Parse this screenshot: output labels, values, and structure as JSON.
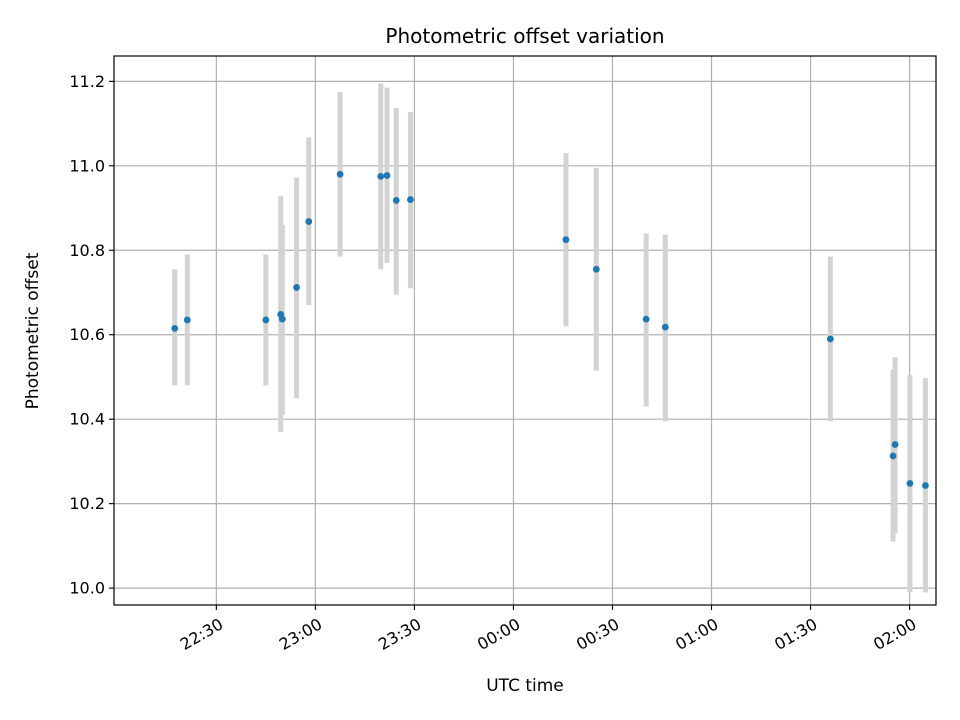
{
  "chart_data": {
    "type": "scatter",
    "title": "Photometric offset variation",
    "xlabel": "UTC time",
    "ylabel": "Photometric offset",
    "x_unit": "minutes",
    "xlim": [
      -121,
      128
    ],
    "ylim": [
      9.96,
      11.26
    ],
    "grid": true,
    "x_ticks": [
      {
        "value": -90,
        "label": "22:30"
      },
      {
        "value": -60,
        "label": "23:00"
      },
      {
        "value": -30,
        "label": "23:30"
      },
      {
        "value": 0,
        "label": "00:00"
      },
      {
        "value": 30,
        "label": "00:30"
      },
      {
        "value": 60,
        "label": "01:00"
      },
      {
        "value": 90,
        "label": "01:30"
      },
      {
        "value": 120,
        "label": "02:00"
      }
    ],
    "y_ticks": [
      {
        "value": 10.0,
        "label": "10.0"
      },
      {
        "value": 10.2,
        "label": "10.2"
      },
      {
        "value": 10.4,
        "label": "10.4"
      },
      {
        "value": 10.6,
        "label": "10.6"
      },
      {
        "value": 10.8,
        "label": "10.8"
      },
      {
        "value": 11.0,
        "label": "11.0"
      },
      {
        "value": 11.2,
        "label": "11.2"
      }
    ],
    "point_color": "#1f77b4",
    "errorbar_color": "#d3d3d3",
    "points": [
      {
        "x": -102.6,
        "y": 10.615,
        "lo": 10.48,
        "hi": 10.755
      },
      {
        "x": -98.8,
        "y": 10.635,
        "lo": 10.48,
        "hi": 10.79
      },
      {
        "x": -75.0,
        "y": 10.635,
        "lo": 10.48,
        "hi": 10.79
      },
      {
        "x": -70.5,
        "y": 10.648,
        "lo": 10.37,
        "hi": 10.928
      },
      {
        "x": -70.0,
        "y": 10.637,
        "lo": 10.41,
        "hi": 10.86
      },
      {
        "x": -65.7,
        "y": 10.712,
        "lo": 10.45,
        "hi": 10.972
      },
      {
        "x": -62.0,
        "y": 10.868,
        "lo": 10.67,
        "hi": 11.067
      },
      {
        "x": -52.5,
        "y": 10.98,
        "lo": 10.785,
        "hi": 11.175
      },
      {
        "x": -40.2,
        "y": 10.975,
        "lo": 10.755,
        "hi": 11.195
      },
      {
        "x": -38.3,
        "y": 10.977,
        "lo": 10.77,
        "hi": 11.185
      },
      {
        "x": -35.5,
        "y": 10.918,
        "lo": 10.695,
        "hi": 11.137
      },
      {
        "x": -31.2,
        "y": 10.92,
        "lo": 10.71,
        "hi": 11.127
      },
      {
        "x": 15.9,
        "y": 10.825,
        "lo": 10.62,
        "hi": 11.03
      },
      {
        "x": 25.1,
        "y": 10.755,
        "lo": 10.515,
        "hi": 10.995
      },
      {
        "x": 40.2,
        "y": 10.637,
        "lo": 10.43,
        "hi": 10.84
      },
      {
        "x": 46.0,
        "y": 10.618,
        "lo": 10.395,
        "hi": 10.837
      },
      {
        "x": 96.0,
        "y": 10.59,
        "lo": 10.395,
        "hi": 10.785
      },
      {
        "x": 115.0,
        "y": 10.313,
        "lo": 10.11,
        "hi": 10.517
      },
      {
        "x": 115.6,
        "y": 10.34,
        "lo": 10.13,
        "hi": 10.547
      },
      {
        "x": 120.1,
        "y": 10.248,
        "lo": 9.99,
        "hi": 10.505
      },
      {
        "x": 124.8,
        "y": 10.243,
        "lo": 9.99,
        "hi": 10.497
      }
    ]
  }
}
